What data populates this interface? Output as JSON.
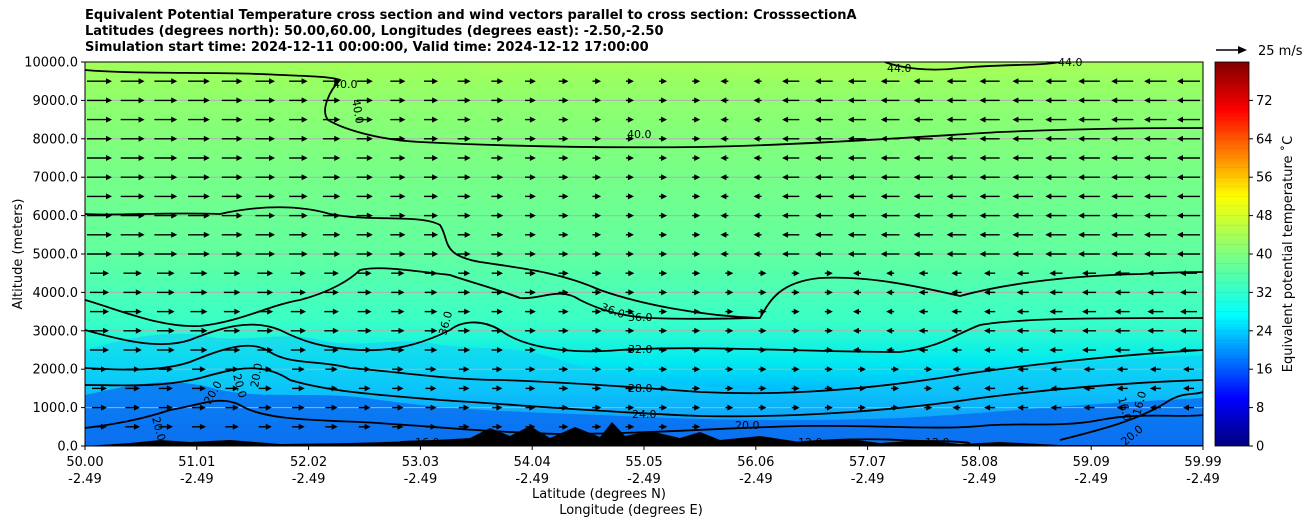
{
  "titles": [
    "Equivalent Potential Temperature cross section and wind vectors parallel to cross section: CrosssectionA",
    "Latitudes (degrees north): 50.00,60.00, Longitudes (degrees east): -2.50,-2.50",
    "Simulation start time: 2024-12-11 00:00:00, Valid time: 2024-12-12 17:00:00"
  ],
  "chart_data": {
    "type": "heatmap",
    "ylabel": "Altitude (meters)",
    "xlabel_lat": "Latitude (degrees N)",
    "xlabel_lon": "Longitude (degrees E)",
    "xticks_lat": [
      "50.00",
      "51.01",
      "52.02",
      "53.03",
      "54.04",
      "55.05",
      "56.06",
      "57.07",
      "58.08",
      "59.09",
      "59.99"
    ],
    "xticks_lon": [
      "-2.49",
      "-2.49",
      "-2.49",
      "-2.49",
      "-2.49",
      "-2.49",
      "-2.49",
      "-2.49",
      "-2.49",
      "-2.49",
      "-2.49"
    ],
    "yticks": [
      "0.0",
      "1000.0",
      "2000.0",
      "3000.0",
      "4000.0",
      "5000.0",
      "6000.0",
      "7000.0",
      "8000.0",
      "9000.0",
      "10000.0"
    ],
    "ylim": [
      0,
      10000
    ],
    "xlim": [
      50.0,
      59.99
    ],
    "grid": "horizontal",
    "colorbar": {
      "label": "Equivalent potential temperature ˚C",
      "range": [
        0,
        80
      ],
      "ticks": [
        "0",
        "8",
        "16",
        "24",
        "32",
        "40",
        "48",
        "56",
        "64",
        "72"
      ],
      "colormap": "jet"
    },
    "contour_levels": [
      12.0,
      16.0,
      20.0,
      24.0,
      28.0,
      32.0,
      36.0,
      40.0,
      44.0
    ],
    "contour_labels": [
      "40.0",
      "40.0",
      "40.0",
      "44.0",
      "44.0",
      "36.0",
      "36.0",
      "36.0",
      "32.0",
      "28.0",
      "24.0",
      "20.0",
      "20.0",
      "20.0",
      "20.0",
      "16.0",
      "16.0",
      "16.0",
      "12.0",
      "12.0",
      "20.0",
      "20.0"
    ],
    "wind_key": "25 m/s"
  }
}
